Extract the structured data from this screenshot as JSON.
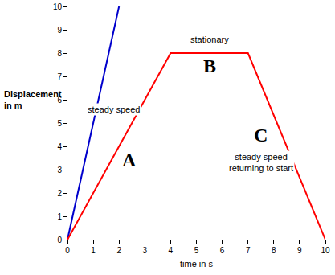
{
  "chart_data": {
    "type": "line",
    "x_label": "time in s",
    "y_label": "Displacement\nin m",
    "xlim": [
      0,
      10
    ],
    "ylim": [
      0,
      10
    ],
    "xticks": [
      0,
      1,
      2,
      3,
      4,
      5,
      6,
      7,
      8,
      9,
      10
    ],
    "yticks": [
      0,
      1,
      2,
      3,
      4,
      5,
      6,
      7,
      8,
      9,
      10
    ],
    "grid": false,
    "series": [
      {
        "color": "#0000cc",
        "x": [
          0,
          2
        ],
        "values": [
          0,
          10
        ]
      },
      {
        "color": "#ff0000",
        "x": [
          0,
          4,
          7,
          10
        ],
        "values": [
          0,
          8,
          8,
          0
        ]
      }
    ],
    "annotations": [
      {
        "text": "steady speed",
        "x": 1.8,
        "y": 5.6
      },
      {
        "text": "A",
        "x": 2.4,
        "y": 3.4
      },
      {
        "text": "stationary",
        "x": 5.5,
        "y": 8.6
      },
      {
        "text": "B",
        "x": 5.5,
        "y": 7.45
      },
      {
        "text": "C",
        "x": 7.5,
        "y": 4.5
      },
      {
        "text": "steady speed\nreturning to start",
        "x": 7.5,
        "y": 3.3
      }
    ]
  }
}
